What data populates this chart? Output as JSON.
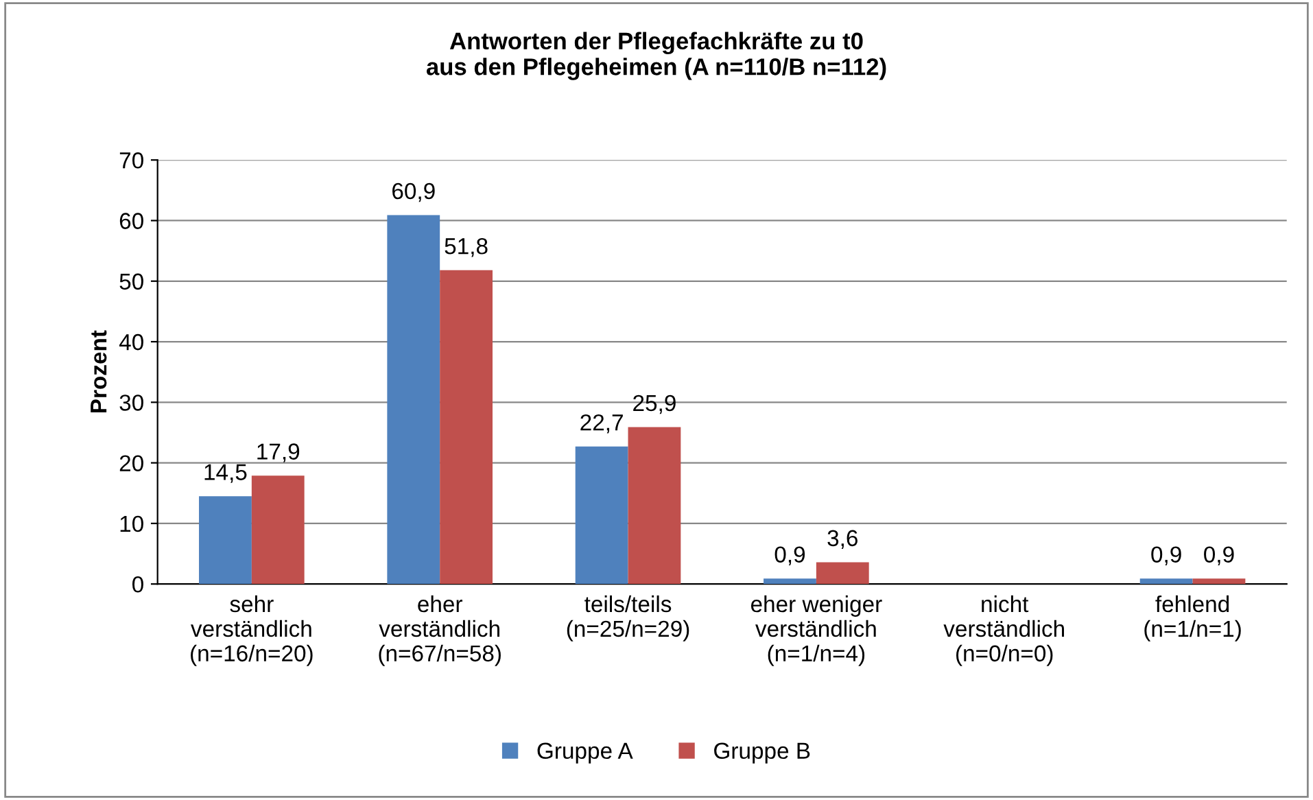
{
  "chart_data": {
    "type": "bar",
    "title": "Antworten der Pflegefachkräfte zu t0\naus den Pflegeheimen (A n=110/B n=112)",
    "ylabel": "Prozent",
    "categories": [
      "sehr\nverständlich\n(n=16/n=20)",
      "eher\nverständlich\n(n=67/n=58)",
      "teils/teils\n(n=25/n=29)",
      "eher weniger\nverständlich\n(n=1/n=4)",
      "nicht\nverständlich\n(n=0/n=0)",
      "fehlend\n(n=1/n=1)"
    ],
    "series": [
      {
        "name": "Gruppe A",
        "color": "#4f81bd",
        "values": [
          14.5,
          60.9,
          22.7,
          0.9,
          0,
          0.9
        ],
        "value_labels": [
          "14,5",
          "60,9",
          "22,7",
          "0,9",
          null,
          "0,9"
        ]
      },
      {
        "name": "Gruppe B",
        "color": "#c0504d",
        "values": [
          17.9,
          51.8,
          25.9,
          3.6,
          0,
          0.9
        ],
        "value_labels": [
          "17,9",
          "51,8",
          "25,9",
          "3,6",
          null,
          "0,9"
        ]
      }
    ],
    "ylim": [
      0,
      70
    ],
    "yticks": [
      0,
      10,
      20,
      30,
      40,
      50,
      60,
      70
    ],
    "grid": "y",
    "legend": "bottom"
  }
}
